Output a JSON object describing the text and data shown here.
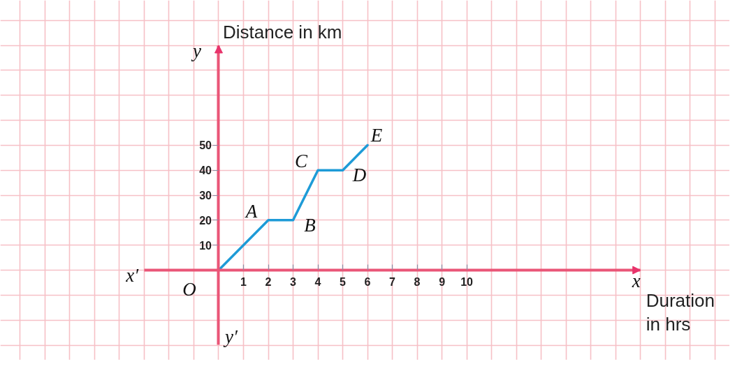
{
  "chart_data": {
    "type": "line",
    "xlabel": "Duration in hrs",
    "ylabel": "Distance in km",
    "x": [
      0,
      2,
      3,
      4,
      5,
      6
    ],
    "series": [
      {
        "color": "#1e9bd7",
        "values": [
          0,
          20,
          20,
          40,
          40,
          50
        ]
      }
    ],
    "xlim": [
      -8.8,
      20.6
    ],
    "ylim": [
      -36,
      108
    ],
    "xticks": [
      1,
      2,
      3,
      4,
      5,
      6,
      7,
      8,
      9,
      10
    ],
    "yticks": [
      10,
      20,
      30,
      40,
      50
    ],
    "grid": true,
    "line_style": "solid",
    "annotations": [
      "y",
      "x′",
      "x",
      "y′",
      {
        "text": "O",
        "x": 0,
        "y": 0
      },
      {
        "text": "A",
        "x": 2,
        "y": 20
      },
      {
        "text": "B",
        "x": 3,
        "y": 20
      },
      {
        "text": "C",
        "x": 4,
        "y": 40
      },
      {
        "text": "D",
        "x": 5,
        "y": 40
      },
      {
        "text": "E",
        "x": 6,
        "y": 50
      }
    ]
  }
}
